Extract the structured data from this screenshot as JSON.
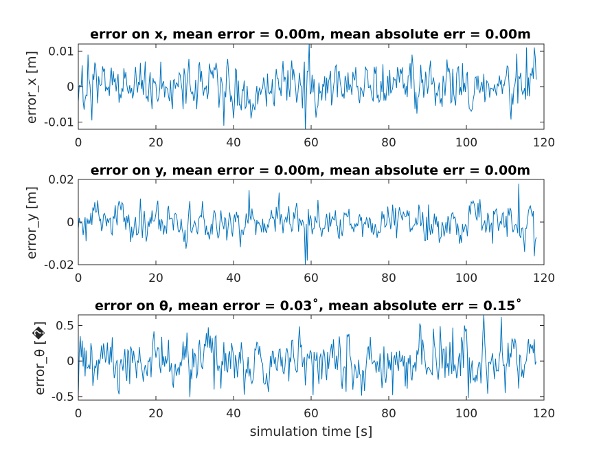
{
  "colors": {
    "series": "#0072BD",
    "axis": "#262626",
    "background": "#ffffff"
  },
  "chart_data": [
    {
      "type": "line",
      "title": "error on x, mean error = 0.00m, mean absolute err = 0.00m",
      "xlabel": "",
      "ylabel": "error_x [m]",
      "xlim": [
        0,
        120
      ],
      "ylim": [
        -0.012,
        0.012
      ],
      "xticks": [
        0,
        20,
        40,
        60,
        80,
        100,
        120
      ],
      "xtick_labels": [
        "0",
        "20",
        "40",
        "60",
        "80",
        "100",
        "120"
      ],
      "yticks": [
        -0.01,
        0,
        0.01
      ],
      "ytick_labels": [
        "-0.01",
        "0",
        "0.01"
      ],
      "grid": false,
      "x_start": 0,
      "x_step": 0.25,
      "seed": 1,
      "sample_count": 473,
      "noise_std": 0.0037,
      "highlights": [
        [
          0.15,
          0.0003
        ],
        [
          1.5,
          -0.0065
        ],
        [
          2.5,
          0.009
        ],
        [
          3.5,
          -0.0095
        ],
        [
          37.5,
          -0.011
        ],
        [
          58.5,
          -0.0123
        ],
        [
          59.5,
          0.0123
        ],
        [
          86.0,
          0.009
        ],
        [
          113.0,
          0.0093
        ],
        [
          115.5,
          0.011
        ],
        [
          117.5,
          0.011
        ],
        [
          118.2,
          0.0
        ]
      ]
    },
    {
      "type": "line",
      "title": "error on y, mean error = 0.00m, mean absolute err = 0.00m",
      "xlabel": "",
      "ylabel": "error_y [m]",
      "xlim": [
        0,
        120
      ],
      "ylim": [
        -0.02,
        0.02
      ],
      "xticks": [
        0,
        20,
        40,
        60,
        80,
        100,
        120
      ],
      "xtick_labels": [
        "0",
        "20",
        "40",
        "60",
        "80",
        "100",
        "120"
      ],
      "yticks": [
        -0.02,
        0,
        0.02
      ],
      "ytick_labels": [
        "-0.02",
        "0",
        "0.02"
      ],
      "grid": false,
      "x_start": 0,
      "x_step": 0.25,
      "seed": 2,
      "sample_count": 473,
      "noise_std": 0.0045,
      "highlights": [
        [
          0.15,
          0.002
        ],
        [
          2.0,
          -0.009
        ],
        [
          16.0,
          0.011
        ],
        [
          44.0,
          0.015
        ],
        [
          58.5,
          -0.02
        ],
        [
          59.0,
          -0.018
        ],
        [
          103.0,
          0.009
        ],
        [
          113.5,
          0.018
        ],
        [
          115.0,
          -0.014
        ],
        [
          117.5,
          -0.016
        ],
        [
          118.2,
          0.01
        ]
      ]
    },
    {
      "type": "line",
      "title": "error on θ, mean error = 0.03˚, mean absolute err = 0.15˚",
      "xlabel": "simulation time [s]",
      "ylabel": "error_θ [�]",
      "xlim": [
        0,
        120
      ],
      "ylim": [
        -0.55,
        0.65
      ],
      "xticks": [
        0,
        20,
        40,
        60,
        80,
        100,
        120
      ],
      "xtick_labels": [
        "0",
        "20",
        "40",
        "60",
        "80",
        "100",
        "120"
      ],
      "yticks": [
        -0.5,
        0,
        0.5
      ],
      "ytick_labels": [
        "-0.5",
        "0",
        "0.5"
      ],
      "grid": false,
      "x_start": 0,
      "x_step": 0.25,
      "seed": 3,
      "sample_count": 473,
      "noise_std": 0.19,
      "highlights": [
        [
          0.1,
          -0.5
        ],
        [
          0.6,
          0.35
        ],
        [
          35.0,
          -0.4
        ],
        [
          60.5,
          -0.48
        ],
        [
          81.0,
          -0.48
        ],
        [
          96.5,
          0.47
        ],
        [
          99.5,
          0.5
        ],
        [
          100.5,
          -0.52
        ],
        [
          104.5,
          0.65
        ],
        [
          105.5,
          -0.46
        ],
        [
          109.0,
          0.62
        ],
        [
          110.0,
          -0.45
        ],
        [
          118.2,
          0.1
        ]
      ]
    }
  ]
}
